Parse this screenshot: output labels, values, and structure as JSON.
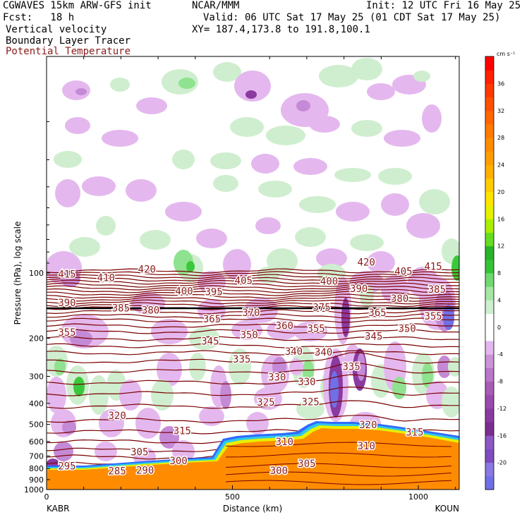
{
  "header": {
    "model": "CGWAVES 15km ARW-GFS init",
    "org": "NCAR/MMM",
    "init": "Init: 12 UTC Fri 16 May 25",
    "fcst": "Fcst:   18 h",
    "valid": "Valid: 06 UTC Sat 17 May 25 (01 CDT Sat 17 May 25)",
    "field1": "Vertical velocity",
    "field2": "Boundary Layer Tracer",
    "field3": "Potential Temperature",
    "xy": "XY= 187.4,173.8 to 191.8,100.1"
  },
  "colors": {
    "theta_line": "#7a0000",
    "theta_label": "#8b1a1a",
    "terrain": "#ff8c00"
  },
  "chart_data": {
    "type": "heatmap",
    "xlabel": "Distance (km)",
    "ylabel": "Pressure (hPa), log scale",
    "xlim": [
      0,
      1110
    ],
    "ylim": [
      1000,
      10
    ],
    "yscale": "log",
    "x_ticks": [
      {
        "value": 0,
        "label": "0"
      },
      {
        "value": 500,
        "label": "500"
      },
      {
        "value": 1000,
        "label": "1000"
      }
    ],
    "y_ticks": [
      {
        "value": 100,
        "label": "100"
      },
      {
        "value": 200,
        "label": "200"
      },
      {
        "value": 300,
        "label": "300"
      },
      {
        "value": 400,
        "label": "400"
      },
      {
        "value": 500,
        "label": "500"
      },
      {
        "value": 600,
        "label": "600"
      },
      {
        "value": 700,
        "label": "700"
      },
      {
        "value": 800,
        "label": "800"
      },
      {
        "value": 900,
        "label": "900"
      },
      {
        "value": 1000,
        "label": "1000"
      }
    ],
    "endpoints": {
      "left": "KABR",
      "right": "KOUN"
    },
    "colorbar": {
      "units": "cm s⁻¹",
      "levels": [
        -22,
        -20,
        -18,
        -16,
        -14,
        -12,
        -10,
        -8,
        -6,
        -4,
        -2,
        0,
        2,
        4,
        6,
        8,
        10,
        12,
        14,
        16,
        18,
        20,
        22,
        24,
        26,
        28,
        30,
        32,
        34,
        36,
        38,
        40
      ],
      "colors": [
        "#7070e6",
        "#8a78e4",
        "#7e4cbe",
        "#8c58c2",
        "#7a2e90",
        "#8a3aa0",
        "#9a4aad",
        "#a85cb6",
        "#ba76c8",
        "#cc94d8",
        "#e4b8ee",
        "#ffffff",
        "#ffffff",
        "#cfeecf",
        "#a5e6a5",
        "#6fd86f",
        "#36c436",
        "#28b428",
        "#66dd22",
        "#aaee00",
        "#e6f000",
        "#ffe400",
        "#ffcc00",
        "#ffb000",
        "#ff9d00",
        "#ff8c00",
        "#ff7a00",
        "#ff6600",
        "#ff5000",
        "#ff3a00",
        "#ff2200",
        "#ff0000"
      ],
      "tick_labels": [
        "-20",
        "-16",
        "-12",
        "-8",
        "-4",
        "0",
        "4",
        "8",
        "12",
        "16",
        "20",
        "24",
        "28",
        "32",
        "36"
      ]
    },
    "theta_labels": [
      {
        "value": "420",
        "x": 270,
        "p": 96
      },
      {
        "value": "420",
        "x": 860,
        "p": 89
      },
      {
        "value": "415",
        "x": 55,
        "p": 101
      },
      {
        "value": "415",
        "x": 1040,
        "p": 93
      },
      {
        "value": "410",
        "x": 160,
        "p": 105
      },
      {
        "value": "405",
        "x": 530,
        "p": 108
      },
      {
        "value": "405",
        "x": 960,
        "p": 98
      },
      {
        "value": "400",
        "x": 370,
        "p": 121
      },
      {
        "value": "400",
        "x": 760,
        "p": 109
      },
      {
        "value": "395",
        "x": 450,
        "p": 122
      },
      {
        "value": "390",
        "x": 55,
        "p": 137
      },
      {
        "value": "390",
        "x": 840,
        "p": 118
      },
      {
        "value": "385",
        "x": 200,
        "p": 145
      },
      {
        "value": "385",
        "x": 1050,
        "p": 119
      },
      {
        "value": "380",
        "x": 280,
        "p": 148
      },
      {
        "value": "380",
        "x": 950,
        "p": 131
      },
      {
        "value": "375",
        "x": 740,
        "p": 144
      },
      {
        "value": "370",
        "x": 550,
        "p": 152
      },
      {
        "value": "365",
        "x": 445,
        "p": 163
      },
      {
        "value": "365",
        "x": 890,
        "p": 152
      },
      {
        "value": "360",
        "x": 640,
        "p": 175
      },
      {
        "value": "355",
        "x": 55,
        "p": 188
      },
      {
        "value": "355",
        "x": 725,
        "p": 180
      },
      {
        "value": "355",
        "x": 1040,
        "p": 158
      },
      {
        "value": "350",
        "x": 545,
        "p": 193
      },
      {
        "value": "350",
        "x": 970,
        "p": 180
      },
      {
        "value": "345",
        "x": 440,
        "p": 206
      },
      {
        "value": "345",
        "x": 880,
        "p": 196
      },
      {
        "value": "340",
        "x": 665,
        "p": 230
      },
      {
        "value": "340",
        "x": 745,
        "p": 232
      },
      {
        "value": "335",
        "x": 525,
        "p": 250
      },
      {
        "value": "335",
        "x": 820,
        "p": 270
      },
      {
        "value": "330",
        "x": 620,
        "p": 302
      },
      {
        "value": "330",
        "x": 700,
        "p": 318
      },
      {
        "value": "325",
        "x": 590,
        "p": 395
      },
      {
        "value": "325",
        "x": 710,
        "p": 393
      },
      {
        "value": "320",
        "x": 190,
        "p": 455
      },
      {
        "value": "320",
        "x": 865,
        "p": 502
      },
      {
        "value": "315",
        "x": 365,
        "p": 535
      },
      {
        "value": "315",
        "x": 990,
        "p": 542
      },
      {
        "value": "310",
        "x": 640,
        "p": 600
      },
      {
        "value": "310",
        "x": 860,
        "p": 628
      },
      {
        "value": "305",
        "x": 250,
        "p": 670
      },
      {
        "value": "305",
        "x": 700,
        "p": 758
      },
      {
        "value": "300",
        "x": 355,
        "p": 735
      },
      {
        "value": "300",
        "x": 625,
        "p": 818
      },
      {
        "value": "295",
        "x": 55,
        "p": 778
      },
      {
        "value": "290",
        "x": 265,
        "p": 814
      },
      {
        "value": "285",
        "x": 190,
        "p": 820
      }
    ]
  }
}
